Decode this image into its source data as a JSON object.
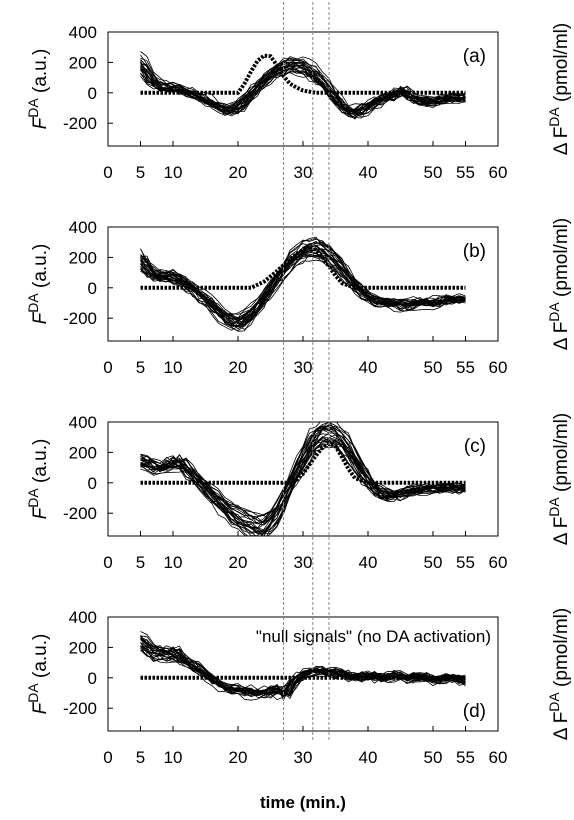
{
  "figure": {
    "xlabel": "time (min.)"
  },
  "chart_data": [
    {
      "type": "line",
      "panel_label": "(a)",
      "annotation": "",
      "ylabel_left": "F^DA (a.u.)",
      "ylabel_right": "Δ F^DA (pmol/ml)",
      "xlim": [
        0,
        60
      ],
      "ylim": [
        -350,
        400
      ],
      "xticks": [
        0,
        5,
        10,
        20,
        30,
        40,
        50,
        55,
        60
      ],
      "yticks": [
        -200,
        0,
        200,
        400
      ],
      "reference_series": {
        "x": [
          5,
          7,
          10,
          15,
          20,
          21,
          22,
          23,
          24,
          25,
          26,
          27,
          28,
          29,
          30,
          32,
          34,
          36,
          38,
          40,
          45,
          50,
          55
        ],
        "y": [
          0,
          0,
          0,
          0,
          0,
          60,
          140,
          210,
          245,
          240,
          180,
          110,
          60,
          35,
          15,
          0,
          0,
          0,
          0,
          0,
          0,
          0,
          0
        ]
      },
      "curves_mean": {
        "x": [
          5,
          6,
          7,
          8,
          10,
          12,
          14,
          16,
          18,
          20,
          22,
          24,
          26,
          28,
          30,
          32,
          34,
          36,
          38,
          40,
          42,
          44,
          45,
          46,
          48,
          50,
          52,
          54,
          55
        ],
        "y": [
          195,
          130,
          70,
          40,
          35,
          10,
          -20,
          -70,
          -110,
          -100,
          -10,
          80,
          150,
          185,
          170,
          110,
          20,
          -90,
          -140,
          -90,
          -40,
          -20,
          25,
          -10,
          -55,
          -60,
          -40,
          -30,
          -30
        ]
      },
      "vertical_lines_x": [
        27,
        31.5,
        34
      ]
    },
    {
      "type": "line",
      "panel_label": "(b)",
      "annotation": "",
      "ylabel_left": "F^DA (a.u.)",
      "ylabel_right": "Δ F^DA (pmol/ml)",
      "xlim": [
        0,
        60
      ],
      "ylim": [
        -350,
        400
      ],
      "xticks": [
        0,
        5,
        10,
        20,
        30,
        40,
        50,
        55,
        60
      ],
      "yticks": [
        -200,
        0,
        200,
        400
      ],
      "reference_series": {
        "x": [
          5,
          10,
          15,
          20,
          22,
          24,
          26,
          28,
          30,
          31,
          32,
          33,
          34,
          35,
          36,
          38,
          40,
          45,
          50,
          55
        ],
        "y": [
          0,
          0,
          0,
          0,
          0,
          40,
          110,
          190,
          250,
          275,
          250,
          200,
          140,
          80,
          30,
          0,
          0,
          0,
          0,
          0
        ]
      },
      "curves_mean": {
        "x": [
          5,
          6,
          7,
          8,
          10,
          12,
          14,
          16,
          18,
          20,
          22,
          24,
          26,
          28,
          30,
          32,
          34,
          36,
          38,
          40,
          42,
          44,
          46,
          48,
          50,
          52,
          54,
          55
        ],
        "y": [
          185,
          130,
          80,
          75,
          70,
          30,
          -40,
          -110,
          -190,
          -230,
          -170,
          -60,
          60,
          170,
          240,
          255,
          210,
          120,
          10,
          -60,
          -90,
          -100,
          -110,
          -90,
          -100,
          -80,
          -70,
          -70
        ]
      },
      "vertical_lines_x": [
        27,
        31.5,
        34
      ]
    },
    {
      "type": "line",
      "panel_label": "(c)",
      "annotation": "",
      "ylabel_left": "F^DA (a.u.)",
      "ylabel_right": "Δ F^DA (pmol/ml)",
      "xlim": [
        0,
        60
      ],
      "ylim": [
        -350,
        400
      ],
      "xticks": [
        0,
        5,
        10,
        20,
        30,
        40,
        50,
        55,
        60
      ],
      "yticks": [
        -200,
        0,
        200,
        400
      ],
      "reference_series": {
        "x": [
          5,
          10,
          15,
          20,
          25,
          28,
          29,
          30,
          31,
          32,
          33,
          34,
          35,
          36,
          37,
          38,
          40,
          45,
          50,
          55
        ],
        "y": [
          0,
          0,
          0,
          0,
          0,
          0,
          20,
          60,
          120,
          180,
          230,
          260,
          240,
          170,
          90,
          30,
          0,
          0,
          0,
          0
        ]
      },
      "curves_mean": {
        "x": [
          5,
          6,
          7,
          8,
          9,
          10,
          11,
          12,
          14,
          16,
          18,
          20,
          22,
          24,
          26,
          28,
          30,
          32,
          34,
          36,
          38,
          40,
          42,
          44,
          46,
          48,
          50,
          52,
          54,
          55
        ],
        "y": [
          140,
          110,
          115,
          70,
          120,
          100,
          140,
          90,
          0,
          -80,
          -170,
          -230,
          -280,
          -300,
          -200,
          -20,
          150,
          290,
          320,
          270,
          130,
          0,
          -80,
          -90,
          -60,
          -50,
          -40,
          -40,
          -40,
          -40
        ]
      },
      "vertical_lines_x": [
        27,
        31.5,
        34
      ]
    },
    {
      "type": "line",
      "panel_label": "(d)",
      "annotation": "\"null signals\" (no DA activation)",
      "ylabel_left": "F^DA (a.u.)",
      "ylabel_right": "Δ F^DA (pmol/ml)",
      "xlim": [
        0,
        60
      ],
      "ylim": [
        -350,
        400
      ],
      "xticks": [
        0,
        5,
        10,
        20,
        30,
        40,
        50,
        55,
        60
      ],
      "yticks": [
        -200,
        0,
        200,
        400
      ],
      "reference_series": {
        "x": [
          5,
          55
        ],
        "y": [
          0,
          0
        ]
      },
      "curves_mean": {
        "x": [
          5,
          6,
          7,
          8,
          9,
          10,
          11,
          12,
          14,
          16,
          18,
          20,
          22,
          24,
          26,
          27,
          28,
          30,
          32,
          34,
          36,
          38,
          40,
          42,
          44,
          46,
          48,
          50,
          52,
          54,
          55
        ],
        "y": [
          220,
          170,
          140,
          150,
          130,
          160,
          110,
          90,
          40,
          -20,
          -70,
          -80,
          -90,
          -100,
          -60,
          -130,
          -40,
          20,
          40,
          30,
          20,
          0,
          10,
          -10,
          20,
          -10,
          10,
          -20,
          0,
          -20,
          -20
        ]
      },
      "vertical_lines_x": [
        27,
        31.5,
        34
      ]
    }
  ]
}
